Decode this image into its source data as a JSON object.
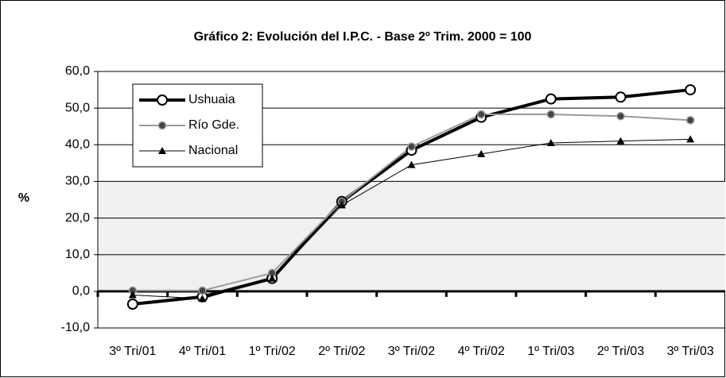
{
  "chart_data": {
    "type": "line",
    "title": "Gráfico 2: Evolución del I.P.C. - Base 2º Trim. 2000 = 100",
    "y_label": "%",
    "categories": [
      "3º Tri/01",
      "4º Tri/01",
      "1º Tri/02",
      "2º Tri/02",
      "3º Tri/02",
      "4º Tri/02",
      "1º Tri/03",
      "2º Tri/03",
      "3º Tri/03"
    ],
    "series": [
      {
        "name": "Ushuaia",
        "color": "#000000",
        "marker": "circle",
        "values": [
          -3.5,
          -1.5,
          3.5,
          24.5,
          38.5,
          47.5,
          52.5,
          53,
          55
        ]
      },
      {
        "name": "Río Gde.",
        "color": "#999999",
        "marker": "dot",
        "values": [
          0.2,
          0.2,
          5,
          24.5,
          39.5,
          48.3,
          48.3,
          47.8,
          46.7
        ]
      },
      {
        "name": "Nacional",
        "color": "#000000",
        "marker": "triangle",
        "values": [
          -1,
          -2,
          3.5,
          23.5,
          34.5,
          37.5,
          40.5,
          41,
          41.5
        ]
      }
    ],
    "ylim": [
      -10,
      60
    ],
    "yticks": [
      {
        "value": -10,
        "label": "-10,0"
      },
      {
        "value": 0,
        "label": "0,0"
      },
      {
        "value": 10,
        "label": "10,0"
      },
      {
        "value": 20,
        "label": "20,0"
      },
      {
        "value": 30,
        "label": "30,0"
      },
      {
        "value": 40,
        "label": "40,0"
      },
      {
        "value": 50,
        "label": "50,0"
      },
      {
        "value": 60,
        "label": "60,0"
      }
    ],
    "grid": true,
    "legend": "upper left"
  }
}
